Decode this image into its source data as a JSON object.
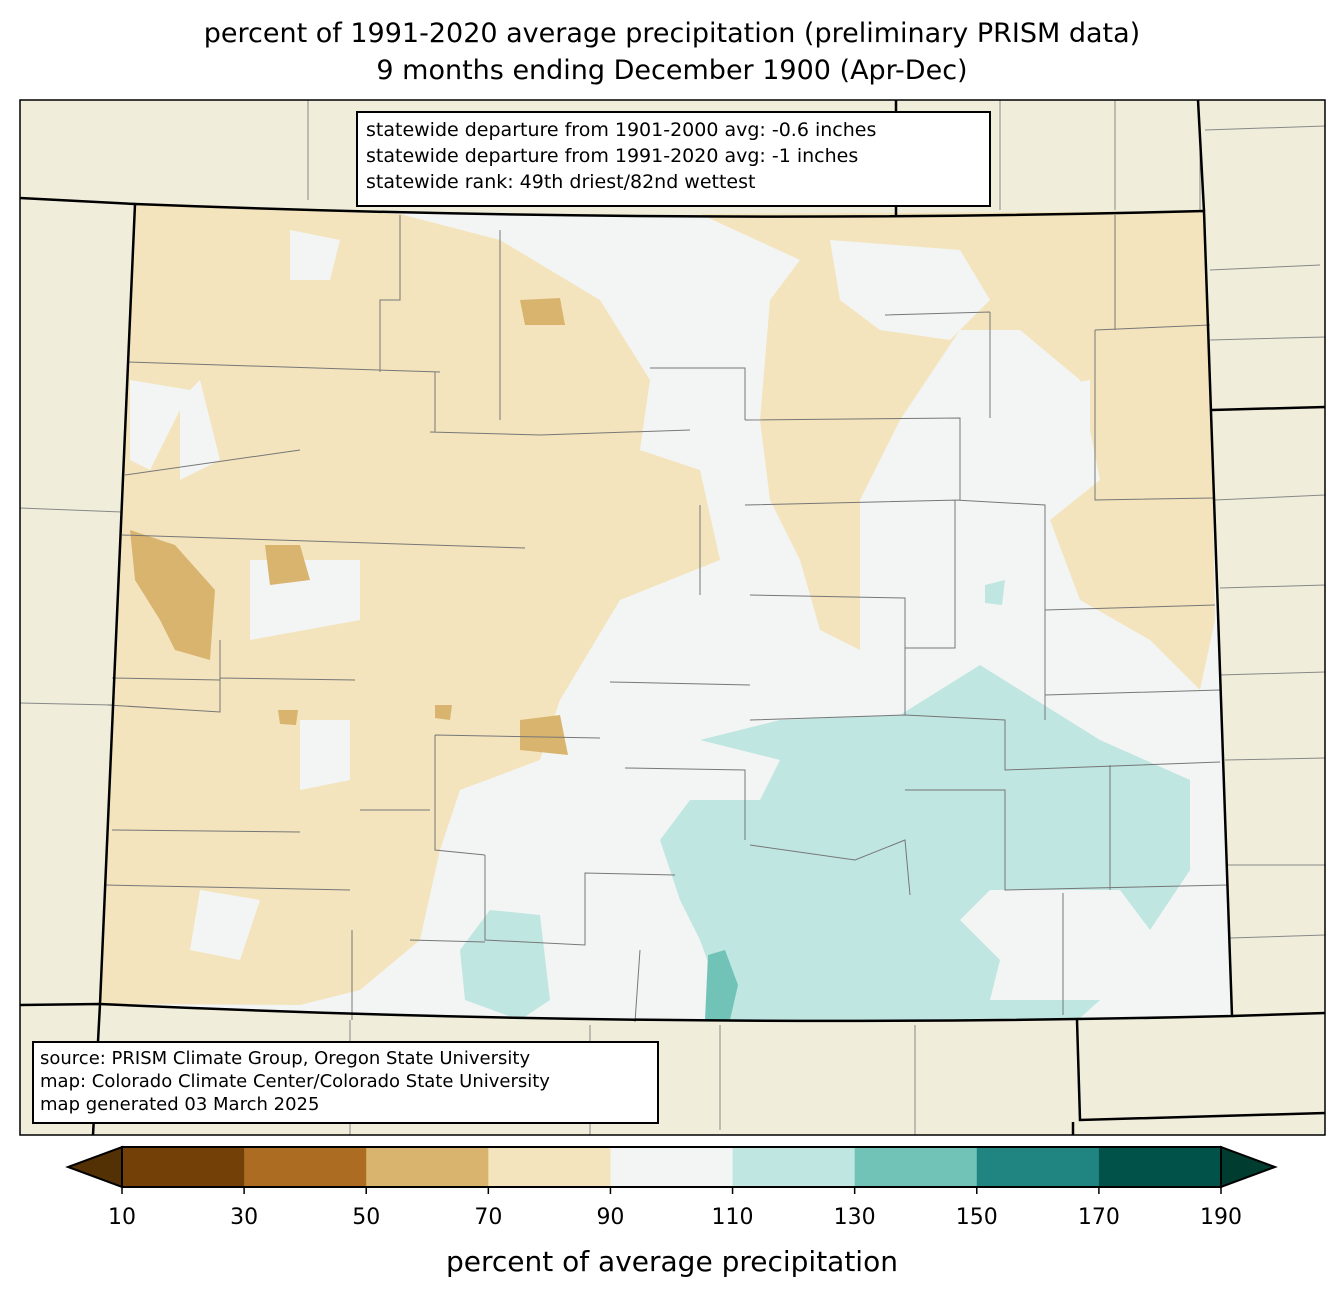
{
  "title": {
    "line1": "percent of 1991-2020 average precipitation (preliminary PRISM data)",
    "line2": "9 months ending December 1900 (Apr-Dec)"
  },
  "stats": [
    "statewide departure from 1901-2000 avg: -0.6 inches",
    "statewide departure from 1991-2020 avg: -1 inches",
    "statewide rank: 49th driest/82nd wettest"
  ],
  "credits": [
    "source: PRISM Climate Group, Oregon State University",
    "map: Colorado Climate Center/Colorado State University",
    "map generated 03 March 2025"
  ],
  "colorbar": {
    "label": "percent of average precipitation",
    "ticks": [
      "10",
      "30",
      "50",
      "70",
      "90",
      "110",
      "130",
      "150",
      "170",
      "190"
    ],
    "under_color": "#543005",
    "over_color": "#003c30",
    "colors": [
      "#734008",
      "#ac6d22",
      "#d9b46e",
      "#f3e4bd",
      "#f3f5f4",
      "#bfe6e1",
      "#71c3b7",
      "#208580",
      "#01534a"
    ]
  },
  "map": {
    "background_color": "#f0eedb"
  }
}
